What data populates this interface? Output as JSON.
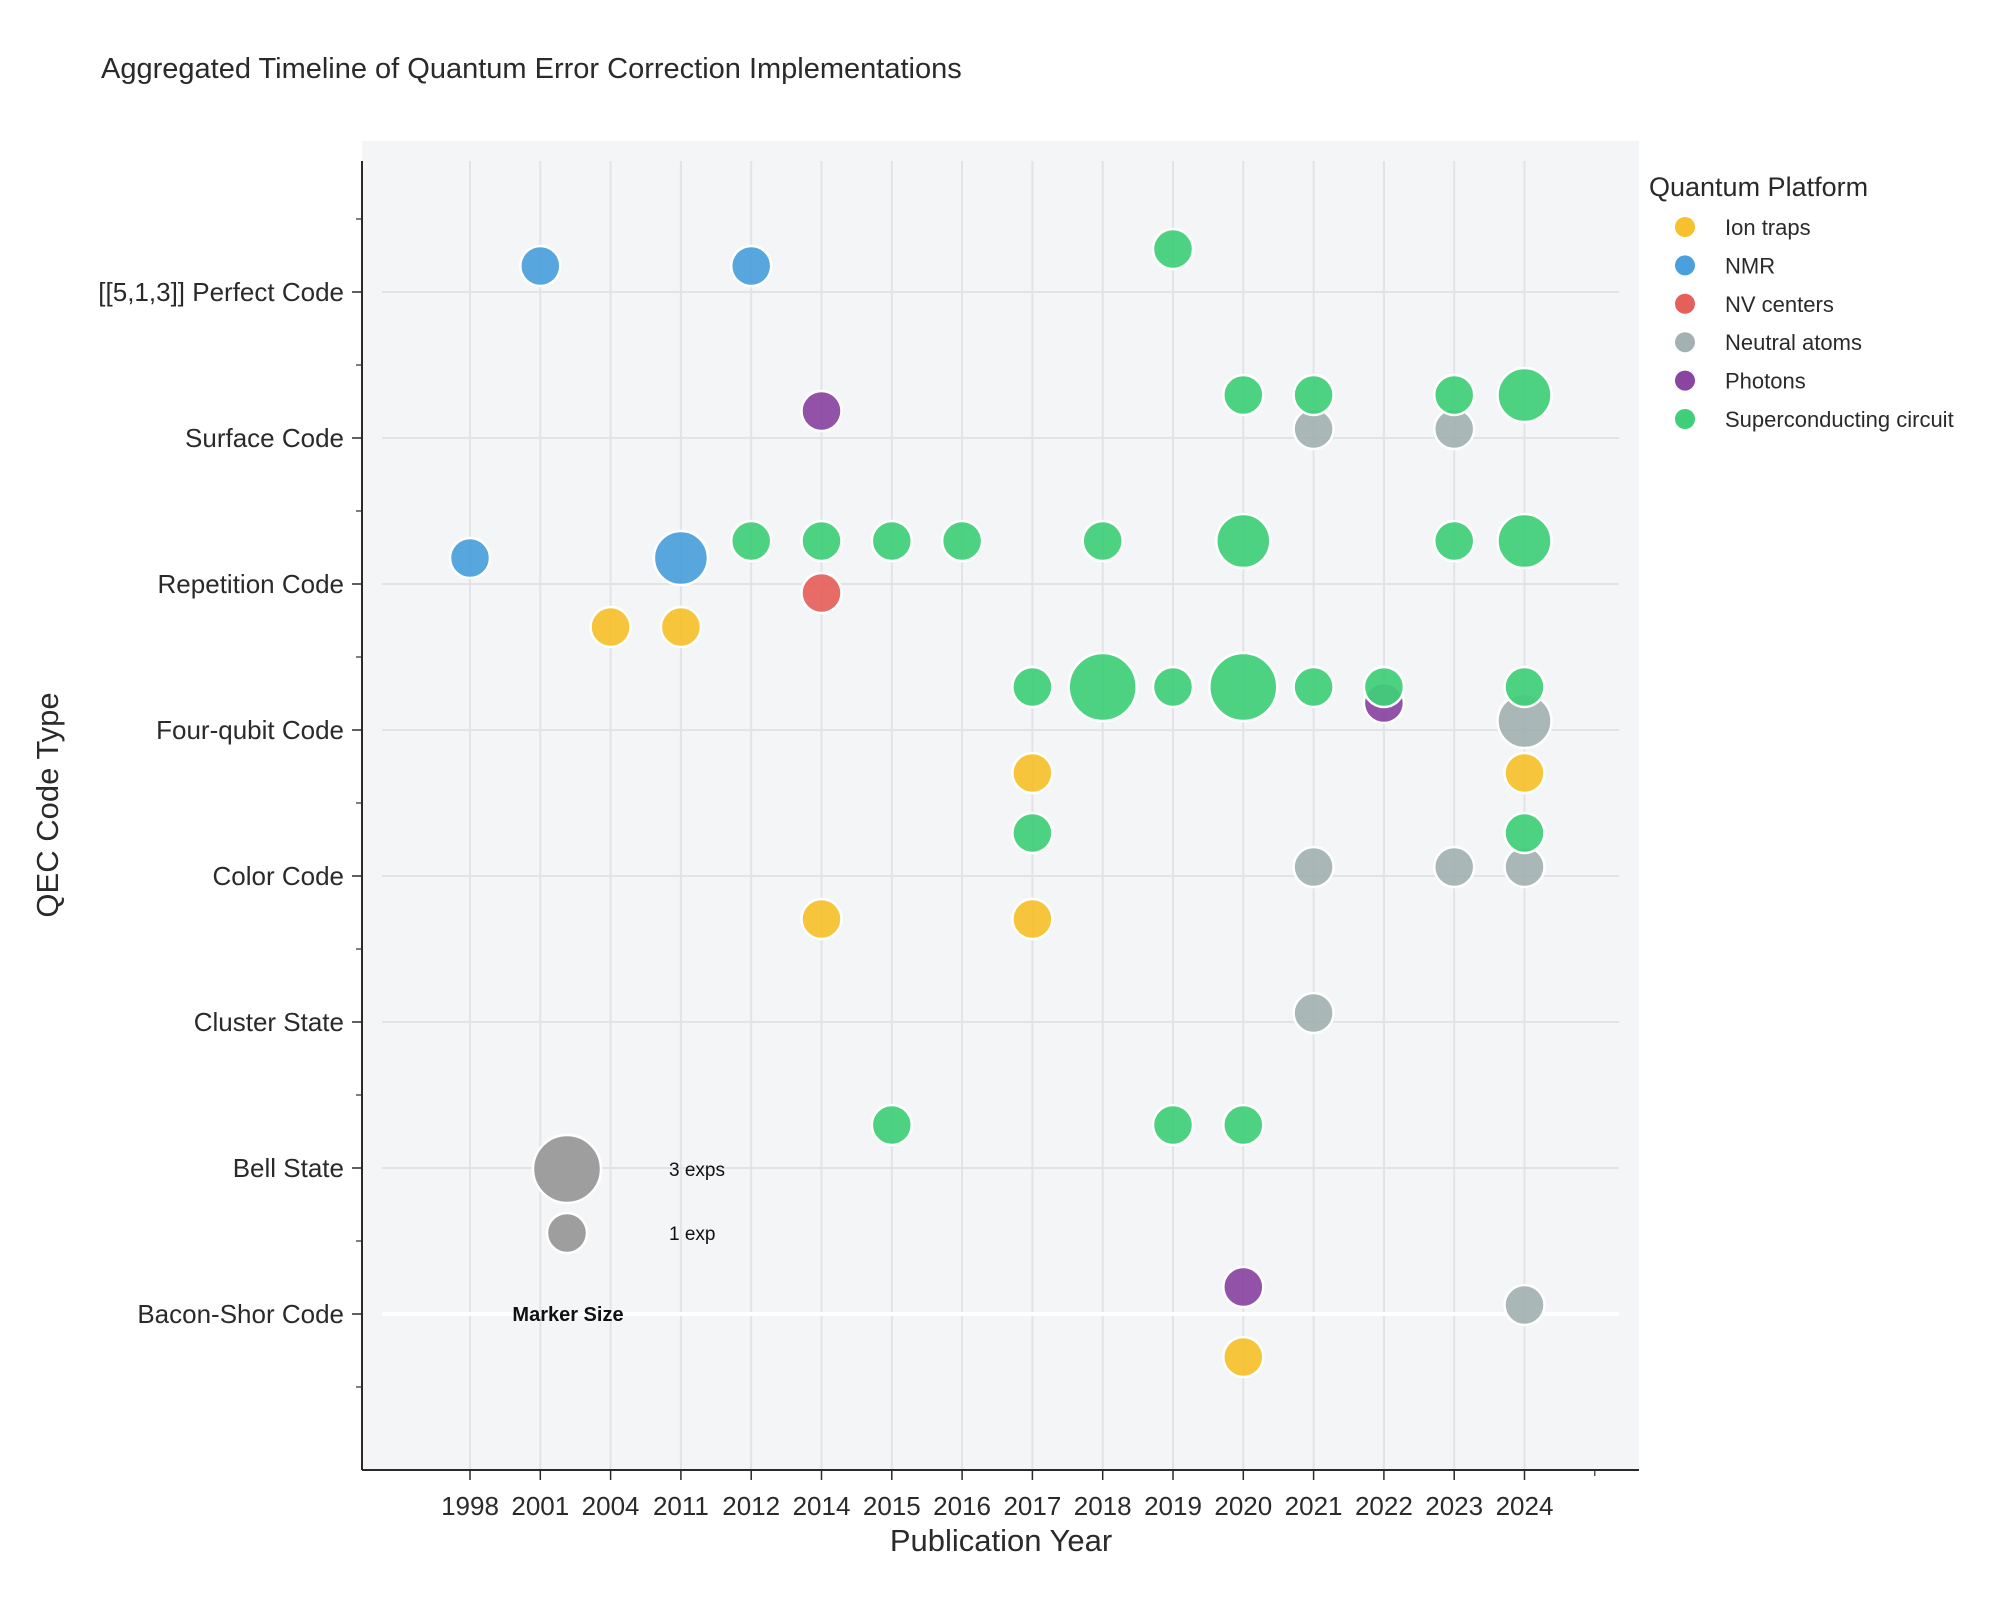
{
  "chart_data": {
    "type": "scatter",
    "title": "Aggregated Timeline of Quantum Error Correction Implementations",
    "xlabel": "Publication Year",
    "ylabel": "QEC Code Type",
    "x_ticks": [
      "1998",
      "2001",
      "2004",
      "2011",
      "2012",
      "2014",
      "2015",
      "2016",
      "2017",
      "2018",
      "2019",
      "2020",
      "2021",
      "2022",
      "2023",
      "2024"
    ],
    "y_categories": [
      "Bacon-Shor Code",
      "Bell State",
      "Cluster State",
      "Color Code",
      "Four-qubit Code",
      "Repetition Code",
      "Surface Code",
      "[[5,1,3]] Perfect Code"
    ],
    "grid": true,
    "legend": {
      "title": "Quantum Platform",
      "placement": "right",
      "entries": [
        {
          "name": "Ion traps",
          "color": "#f6c12c"
        },
        {
          "name": "NMR",
          "color": "#4a9fdc"
        },
        {
          "name": "NV centers",
          "color": "#e5605a"
        },
        {
          "name": "Neutral atoms",
          "color": "#a4b1b2"
        },
        {
          "name": "Photons",
          "color": "#8a45a0"
        },
        {
          "name": "Superconducting circuit",
          "color": "#3fcf78"
        }
      ]
    },
    "size_legend": {
      "title": "Marker Size",
      "entries": [
        {
          "label": "3 exps",
          "count": 3
        },
        {
          "label": "1 exp",
          "count": 1
        }
      ]
    },
    "series": [
      {
        "name": "Ion traps",
        "points": [
          {
            "year": "2004",
            "code": "Repetition Code",
            "count": 1
          },
          {
            "year": "2011",
            "code": "Repetition Code",
            "count": 1
          },
          {
            "year": "2017",
            "code": "Four-qubit Code",
            "count": 1
          },
          {
            "year": "2024",
            "code": "Four-qubit Code",
            "count": 1
          },
          {
            "year": "2014",
            "code": "Color Code",
            "count": 1
          },
          {
            "year": "2017",
            "code": "Color Code",
            "count": 1
          },
          {
            "year": "2020",
            "code": "Bacon-Shor Code",
            "count": 1
          }
        ]
      },
      {
        "name": "NMR",
        "points": [
          {
            "year": "2001",
            "code": "[[5,1,3]] Perfect Code",
            "count": 1
          },
          {
            "year": "2012",
            "code": "[[5,1,3]] Perfect Code",
            "count": 1
          },
          {
            "year": "1998",
            "code": "Repetition Code",
            "count": 1
          },
          {
            "year": "2011",
            "code": "Repetition Code",
            "count": 2
          }
        ]
      },
      {
        "name": "NV centers",
        "points": [
          {
            "year": "2014",
            "code": "Repetition Code",
            "count": 1
          }
        ]
      },
      {
        "name": "Neutral atoms",
        "points": [
          {
            "year": "2021",
            "code": "Surface Code",
            "count": 1
          },
          {
            "year": "2023",
            "code": "Surface Code",
            "count": 1
          },
          {
            "year": "2024",
            "code": "Four-qubit Code",
            "count": 2
          },
          {
            "year": "2021",
            "code": "Color Code",
            "count": 1
          },
          {
            "year": "2023",
            "code": "Color Code",
            "count": 1
          },
          {
            "year": "2024",
            "code": "Color Code",
            "count": 1
          },
          {
            "year": "2021",
            "code": "Cluster State",
            "count": 1
          },
          {
            "year": "2024",
            "code": "Bacon-Shor Code",
            "count": 1
          }
        ]
      },
      {
        "name": "Photons",
        "points": [
          {
            "year": "2014",
            "code": "Surface Code",
            "count": 1
          },
          {
            "year": "2022",
            "code": "Four-qubit Code",
            "count": 1
          },
          {
            "year": "2020",
            "code": "Bacon-Shor Code",
            "count": 1
          }
        ]
      },
      {
        "name": "Superconducting circuit",
        "points": [
          {
            "year": "2019",
            "code": "[[5,1,3]] Perfect Code",
            "count": 1
          },
          {
            "year": "2020",
            "code": "Surface Code",
            "count": 1
          },
          {
            "year": "2021",
            "code": "Surface Code",
            "count": 1
          },
          {
            "year": "2023",
            "code": "Surface Code",
            "count": 1
          },
          {
            "year": "2024",
            "code": "Surface Code",
            "count": 2
          },
          {
            "year": "2012",
            "code": "Repetition Code",
            "count": 1
          },
          {
            "year": "2014",
            "code": "Repetition Code",
            "count": 1
          },
          {
            "year": "2015",
            "code": "Repetition Code",
            "count": 1
          },
          {
            "year": "2016",
            "code": "Repetition Code",
            "count": 1
          },
          {
            "year": "2018",
            "code": "Repetition Code",
            "count": 1
          },
          {
            "year": "2020",
            "code": "Repetition Code",
            "count": 2
          },
          {
            "year": "2023",
            "code": "Repetition Code",
            "count": 1
          },
          {
            "year": "2024",
            "code": "Repetition Code",
            "count": 2
          },
          {
            "year": "2017",
            "code": "Four-qubit Code",
            "count": 1
          },
          {
            "year": "2018",
            "code": "Four-qubit Code",
            "count": 3
          },
          {
            "year": "2019",
            "code": "Four-qubit Code",
            "count": 1
          },
          {
            "year": "2020",
            "code": "Four-qubit Code",
            "count": 3
          },
          {
            "year": "2021",
            "code": "Four-qubit Code",
            "count": 1
          },
          {
            "year": "2022",
            "code": "Four-qubit Code",
            "count": 1
          },
          {
            "year": "2024",
            "code": "Four-qubit Code",
            "count": 1
          },
          {
            "year": "2017",
            "code": "Color Code",
            "count": 1
          },
          {
            "year": "2024",
            "code": "Color Code",
            "count": 1
          },
          {
            "year": "2015",
            "code": "Bell State",
            "count": 1
          },
          {
            "year": "2019",
            "code": "Bell State",
            "count": 1
          },
          {
            "year": "2020",
            "code": "Bell State",
            "count": 1
          }
        ]
      }
    ]
  }
}
